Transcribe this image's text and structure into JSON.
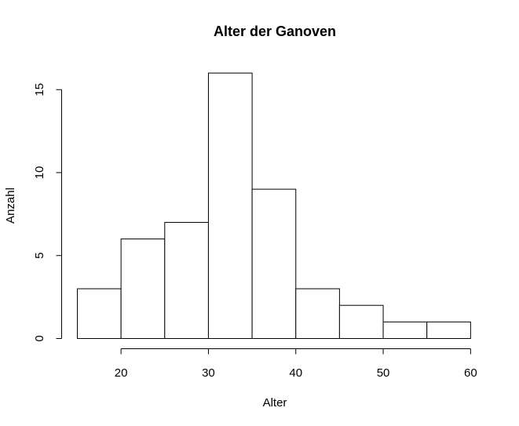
{
  "chart_data": {
    "type": "histogram",
    "title": "Alter der Ganoven",
    "xlabel": "Alter",
    "ylabel": "Anzahl",
    "bins": [
      {
        "from": 15,
        "to": 20,
        "count": 3
      },
      {
        "from": 20,
        "to": 25,
        "count": 6
      },
      {
        "from": 25,
        "to": 30,
        "count": 7
      },
      {
        "from": 30,
        "to": 35,
        "count": 16
      },
      {
        "from": 35,
        "to": 40,
        "count": 9
      },
      {
        "from": 40,
        "to": 45,
        "count": 3
      },
      {
        "from": 45,
        "to": 50,
        "count": 2
      },
      {
        "from": 50,
        "to": 55,
        "count": 1
      },
      {
        "from": 55,
        "to": 60,
        "count": 1
      }
    ],
    "xticks": [
      20,
      30,
      40,
      50,
      60
    ],
    "yticks": [
      0,
      5,
      10,
      15
    ],
    "xlim": [
      15,
      60
    ],
    "ylim": [
      0,
      16
    ],
    "grid": false
  }
}
